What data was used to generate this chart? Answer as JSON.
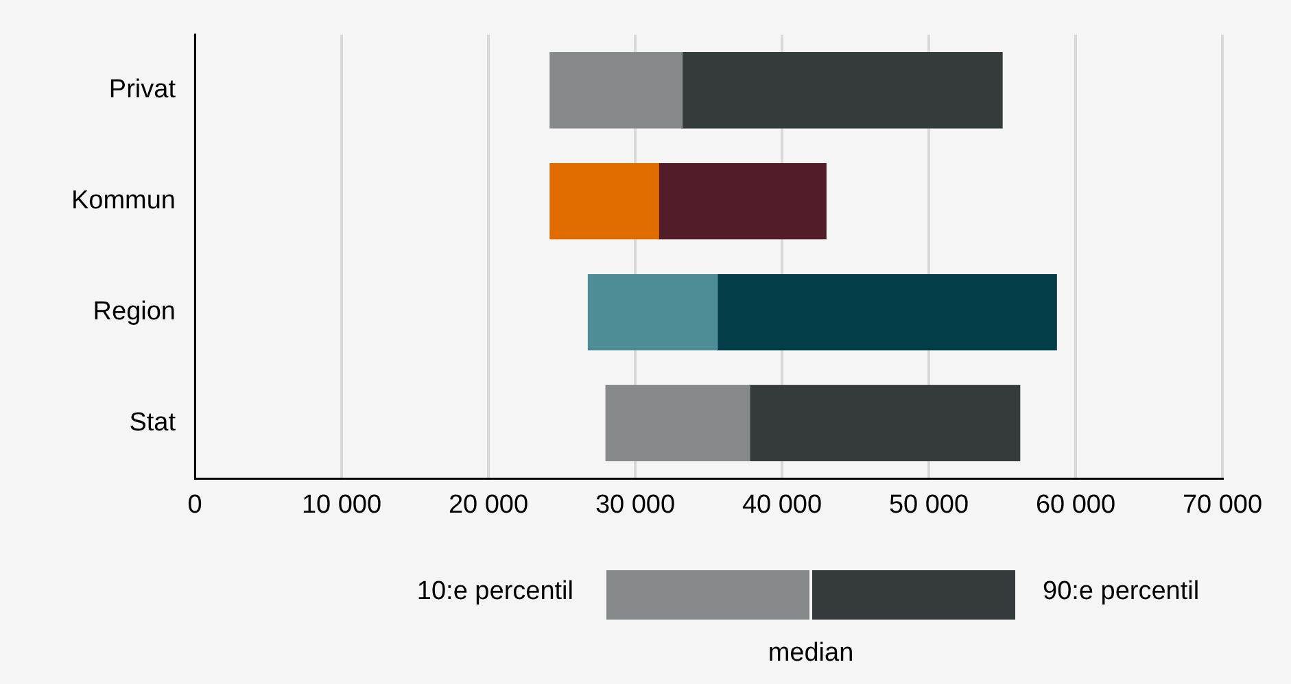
{
  "chart_data": {
    "type": "bar",
    "orientation": "horizontal",
    "categories": [
      "Privat",
      "Kommun",
      "Region",
      "Stat"
    ],
    "series": [
      {
        "colors": [
          "#868a8b",
          "#e06c00",
          "#4e8c96",
          "#868a8b"
        ],
        "base": [
          24200,
          24200,
          26800,
          28000
        ],
        "values": [
          9000,
          7400,
          8800,
          9800
        ]
      },
      {
        "colors": [
          "#353a3a",
          "#521c28",
          "#023d48",
          "#353a3a"
        ],
        "base": [
          33200,
          31600,
          35600,
          37800
        ],
        "values": [
          21800,
          11400,
          23100,
          18400
        ]
      }
    ],
    "xlim": [
      0,
      70000
    ],
    "xticks": [
      0,
      {
        "value": 10000,
        "label": "10 000"
      },
      {
        "value": 20000,
        "label": "20 000"
      },
      {
        "value": 30000,
        "label": "30 000"
      },
      {
        "value": 40000,
        "label": "40 000"
      },
      {
        "value": 50000,
        "label": "50 000"
      },
      {
        "value": 60000,
        "label": "60 000"
      },
      {
        "value": 70000,
        "label": "70 000"
      }
    ],
    "grid": "x",
    "annotations": [
      "10:e percentil",
      "90:e percentil",
      "median"
    ]
  }
}
